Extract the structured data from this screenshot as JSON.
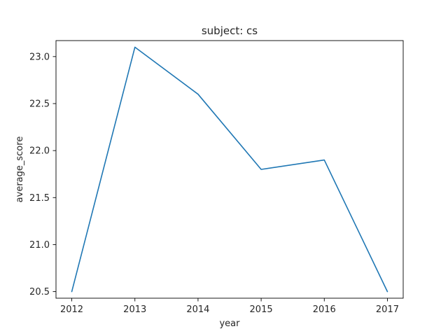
{
  "chart_data": {
    "type": "line",
    "title": "subject: cs",
    "xlabel": "year",
    "ylabel": "average_score",
    "x": [
      2012,
      2013,
      2014,
      2015,
      2016,
      2017
    ],
    "series": [
      {
        "values": [
          20.5,
          23.1,
          22.6,
          21.8,
          21.9,
          20.5
        ],
        "color": "#1f77b4"
      }
    ],
    "xticks": [
      "2012",
      "2013",
      "2014",
      "2015",
      "2016",
      "2017"
    ],
    "yticks": [
      "20.5",
      "21.0",
      "21.5",
      "22.0",
      "22.5",
      "23.0"
    ],
    "ylim": [
      20.43,
      23.17
    ],
    "xlim": [
      2011.75,
      2017.25
    ],
    "grid": false
  }
}
